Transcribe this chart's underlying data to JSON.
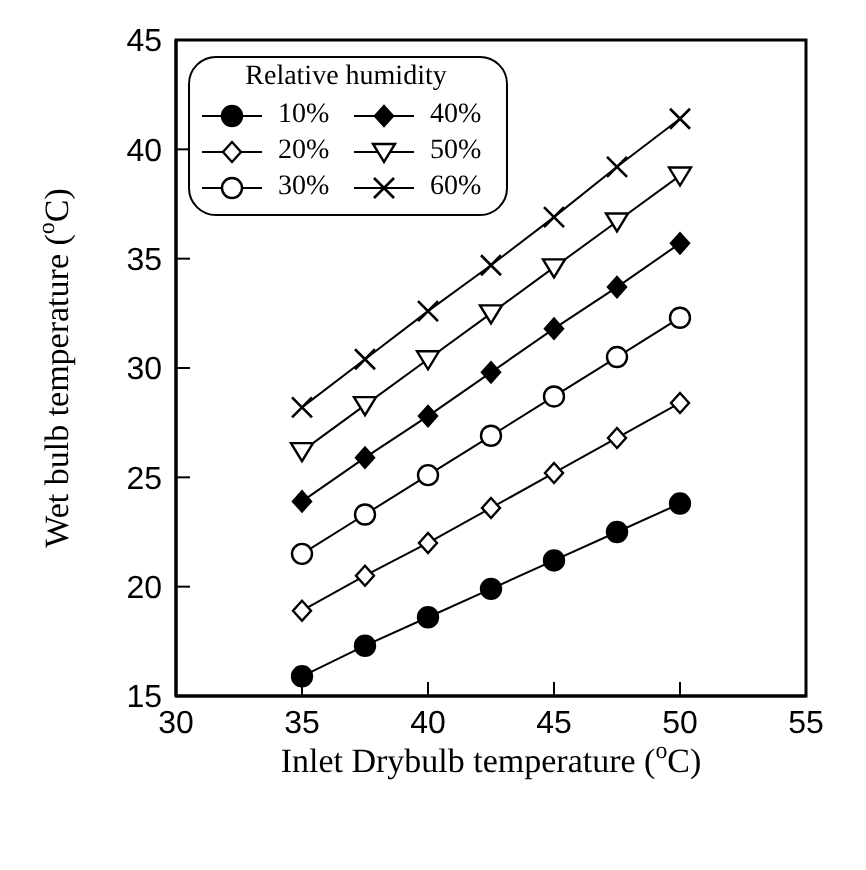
{
  "chart_data": {
    "type": "line",
    "xlabel": "Inlet Drybulb temperature ($^{o}$C)",
    "ylabel": "Wet bulb temperature ($^{o}$C)",
    "legend_title": "Relative humidity",
    "x": [
      35,
      37.5,
      40,
      42.5,
      45,
      47.5,
      50
    ],
    "series": [
      {
        "name": "10%",
        "color": "#000000",
        "marker": "circle",
        "values": [
          15.9,
          17.3,
          18.6,
          19.9,
          21.2,
          22.5,
          23.8
        ]
      },
      {
        "name": "20%",
        "color": "#000000",
        "marker": "diamond",
        "values": [
          18.9,
          20.5,
          22.0,
          23.6,
          25.2,
          26.8,
          28.4
        ]
      },
      {
        "name": "30%",
        "color": "#000000",
        "marker": "circle",
        "values": [
          21.5,
          23.3,
          25.1,
          26.9,
          28.7,
          30.5,
          32.3
        ]
      },
      {
        "name": "40%",
        "color": "#000000",
        "marker": "diamond",
        "values": [
          23.9,
          25.9,
          27.8,
          29.8,
          31.8,
          33.7,
          35.7
        ]
      },
      {
        "name": "50%",
        "color": "#000000",
        "marker": "triangle",
        "values": [
          26.2,
          28.3,
          30.4,
          32.5,
          34.6,
          36.7,
          38.8
        ]
      },
      {
        "name": "60%",
        "color": "#000000",
        "marker": "cross",
        "values": [
          28.2,
          30.4,
          32.6,
          34.7,
          36.9,
          39.2,
          41.4
        ]
      }
    ],
    "xlim": [
      30,
      55
    ],
    "xticks": [
      30,
      35,
      40,
      45,
      50,
      55
    ],
    "ylim": [
      15,
      45
    ],
    "yticks": [
      15,
      20,
      25,
      30,
      35,
      40,
      45
    ],
    "grid": false,
    "legend": "top left",
    "line_style": "solid"
  }
}
